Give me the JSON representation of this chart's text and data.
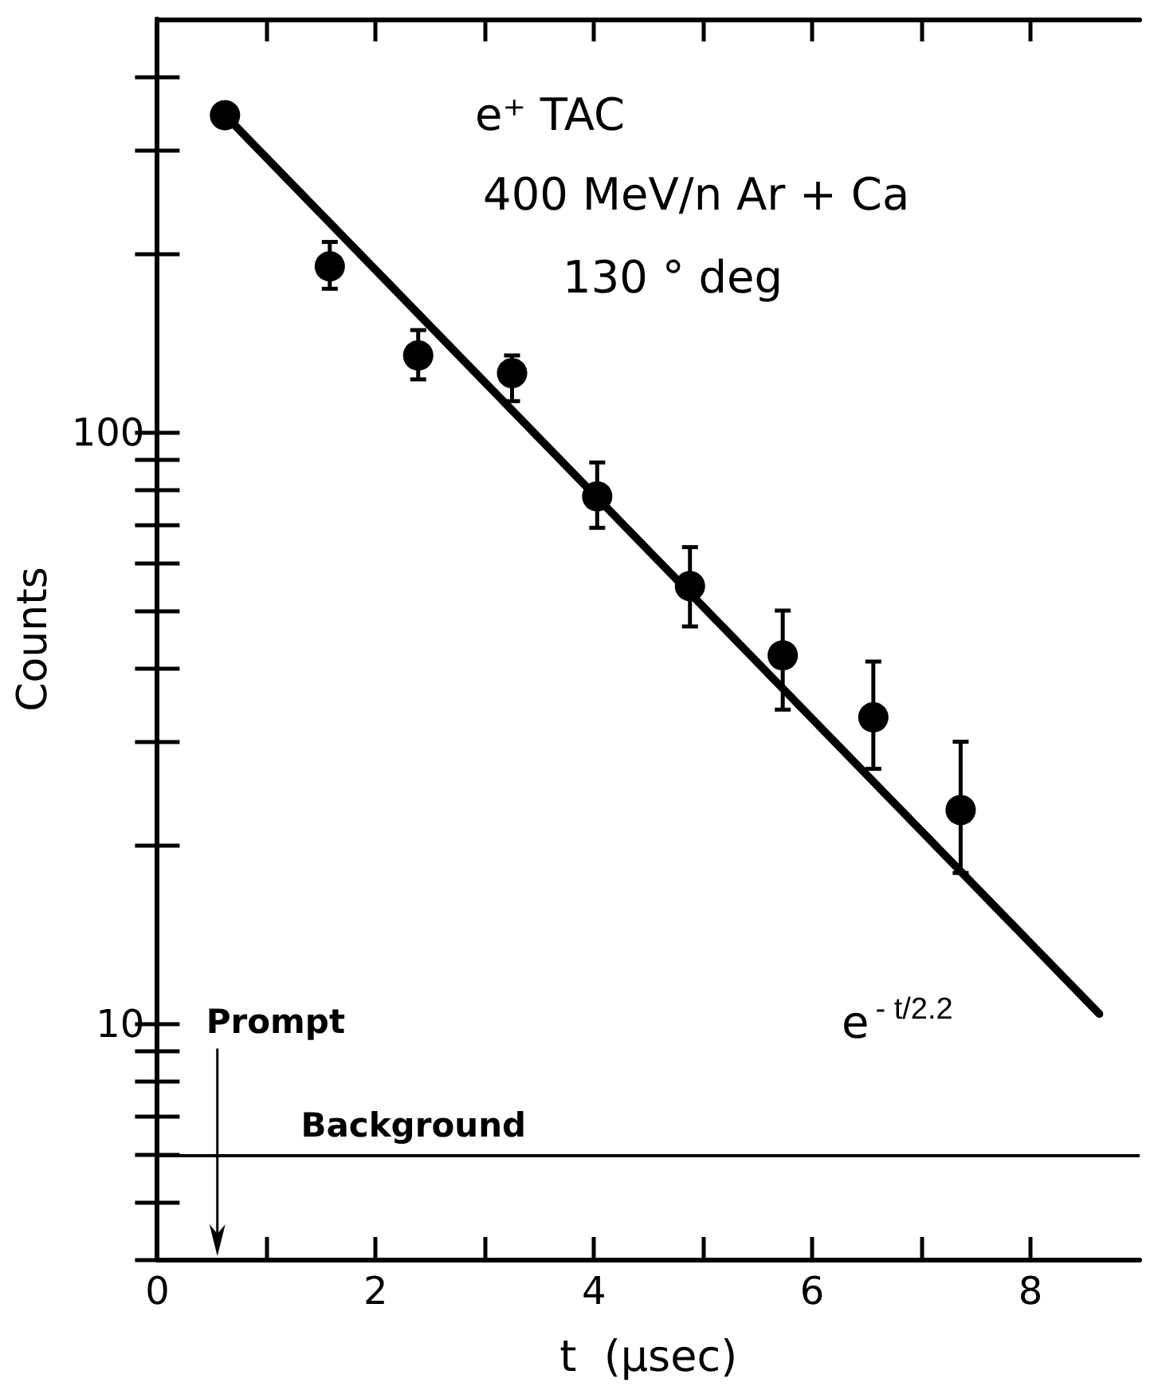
{
  "chart_data": {
    "type": "scatter",
    "xlabel": "t  (μsec)",
    "ylabel": "Counts",
    "x": [
      0.62,
      1.58,
      2.39,
      3.25,
      4.03,
      4.88,
      5.73,
      6.56,
      7.36
    ],
    "series": [
      {
        "color": "#000000",
        "marker": "circle",
        "values": [
          344,
          191,
          135,
          126,
          78,
          55,
          42,
          33,
          23
        ],
        "errors": [
          null,
          [
            175,
            210
          ],
          [
            123,
            149
          ],
          [
            113,
            135
          ],
          [
            69,
            89
          ],
          [
            47,
            64
          ],
          [
            34,
            50
          ],
          [
            27,
            41
          ],
          [
            18,
            30
          ]
        ]
      },
      {
        "type": "line",
        "color": "#000000",
        "marker": "none",
        "x": [
          0.62,
          8.63
        ],
        "values": [
          344,
          10.4
        ]
      }
    ],
    "line_style": "solid",
    "log": "y",
    "grid": false,
    "legend": false,
    "xlim": [
      0,
      9
    ],
    "ylim": [
      4,
      500
    ],
    "xticks": [
      0,
      {
        "value": 1,
        "label": null
      },
      2,
      {
        "value": 3,
        "label": null
      },
      4,
      {
        "value": 5,
        "label": null
      },
      6,
      {
        "value": 7,
        "label": null
      },
      8
    ],
    "yticks": [
      {
        "value": 4,
        "label": null
      },
      {
        "value": 5,
        "label": null
      },
      {
        "value": 6,
        "label": null
      },
      {
        "value": 7,
        "label": null
      },
      {
        "value": 8,
        "label": null
      },
      {
        "value": 9,
        "label": null
      },
      10,
      {
        "value": 20,
        "label": null
      },
      {
        "value": 30,
        "label": null
      },
      {
        "value": 40,
        "label": null
      },
      {
        "value": 50,
        "label": null
      },
      {
        "value": 60,
        "label": null
      },
      {
        "value": 70,
        "label": null
      },
      {
        "value": 80,
        "label": null
      },
      {
        "value": 90,
        "label": null
      },
      100,
      {
        "value": 200,
        "label": null
      },
      {
        "value": 300,
        "label": null
      },
      {
        "value": 400,
        "label": null
      }
    ],
    "ref_lines": [
      {
        "axis": "y",
        "value": 6,
        "label": "Background",
        "color": "#000000"
      },
      {
        "axis": "x",
        "value": 0.55,
        "label": "Prompt",
        "color": "#000000"
      }
    ],
    "annotations": [
      "e⁺ TAC",
      "400 MeV/n Ar + Ca",
      "130 ° deg",
      "e$^{- t/2.2}$"
    ]
  }
}
